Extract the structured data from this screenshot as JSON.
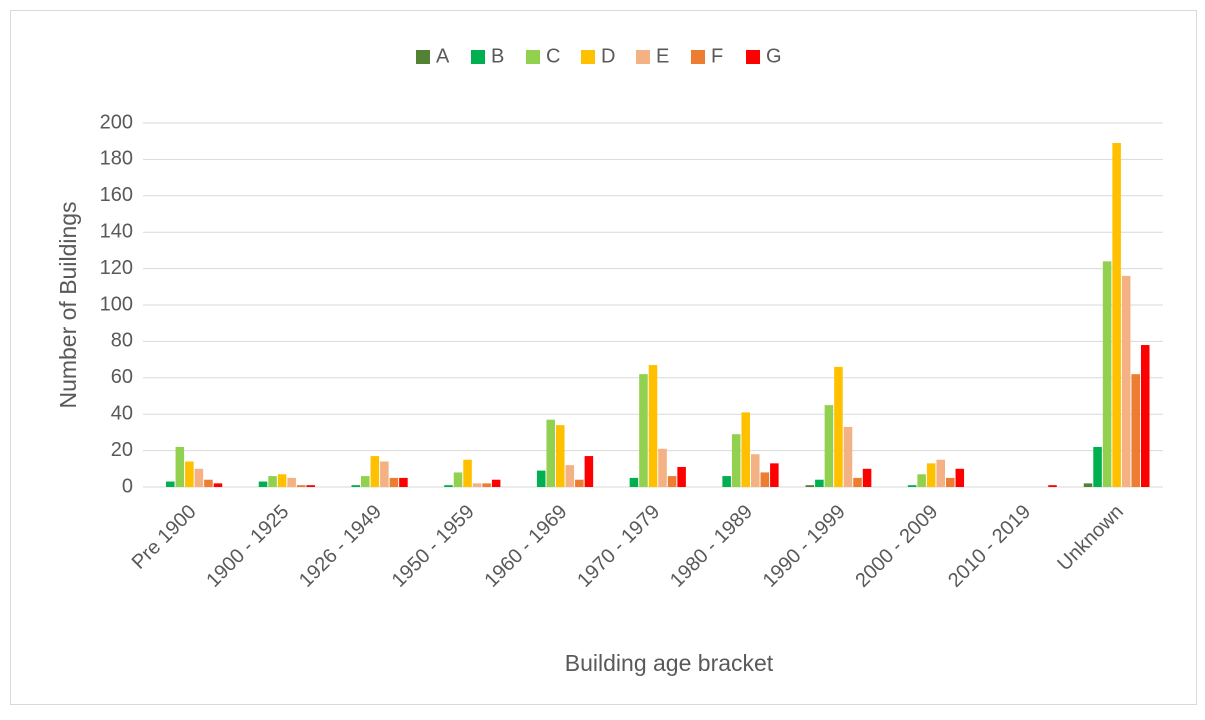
{
  "chart_data": {
    "type": "bar",
    "x_label": "Building age bracket",
    "y_label": "Number of Buildings",
    "categories": [
      "Pre 1900",
      "1900 - 1925",
      "1926 - 1949",
      "1950 - 1959",
      "1960 - 1969",
      "1970 - 1979",
      "1980 - 1989",
      "1990 - 1999",
      "2000 - 2009",
      "2010 - 2019",
      "Unknown"
    ],
    "series": [
      {
        "name": "A",
        "color": "#548235",
        "values": [
          0,
          0,
          0,
          0,
          0,
          0,
          0,
          1,
          0,
          0,
          2
        ]
      },
      {
        "name": "B",
        "color": "#00b050",
        "values": [
          3,
          3,
          1,
          1,
          9,
          5,
          6,
          4,
          1,
          0,
          22
        ]
      },
      {
        "name": "C",
        "color": "#92d050",
        "values": [
          22,
          6,
          6,
          8,
          37,
          62,
          29,
          45,
          7,
          0,
          124
        ]
      },
      {
        "name": "D",
        "color": "#ffc000",
        "values": [
          14,
          7,
          17,
          15,
          34,
          67,
          41,
          66,
          13,
          0,
          189
        ]
      },
      {
        "name": "E",
        "color": "#f4b183",
        "values": [
          10,
          5,
          14,
          2,
          12,
          21,
          18,
          33,
          15,
          0,
          116
        ]
      },
      {
        "name": "F",
        "color": "#ed7d31",
        "values": [
          4,
          1,
          5,
          2,
          4,
          6,
          8,
          5,
          5,
          0,
          62
        ]
      },
      {
        "name": "G",
        "color": "#ff0000",
        "values": [
          2,
          1,
          5,
          4,
          17,
          11,
          13,
          10,
          10,
          1,
          78
        ]
      }
    ],
    "ylim": [
      0,
      200
    ],
    "yticks": [
      0,
      20,
      40,
      60,
      80,
      100,
      120,
      140,
      160,
      180,
      200
    ],
    "grid": true,
    "legend": "top"
  }
}
